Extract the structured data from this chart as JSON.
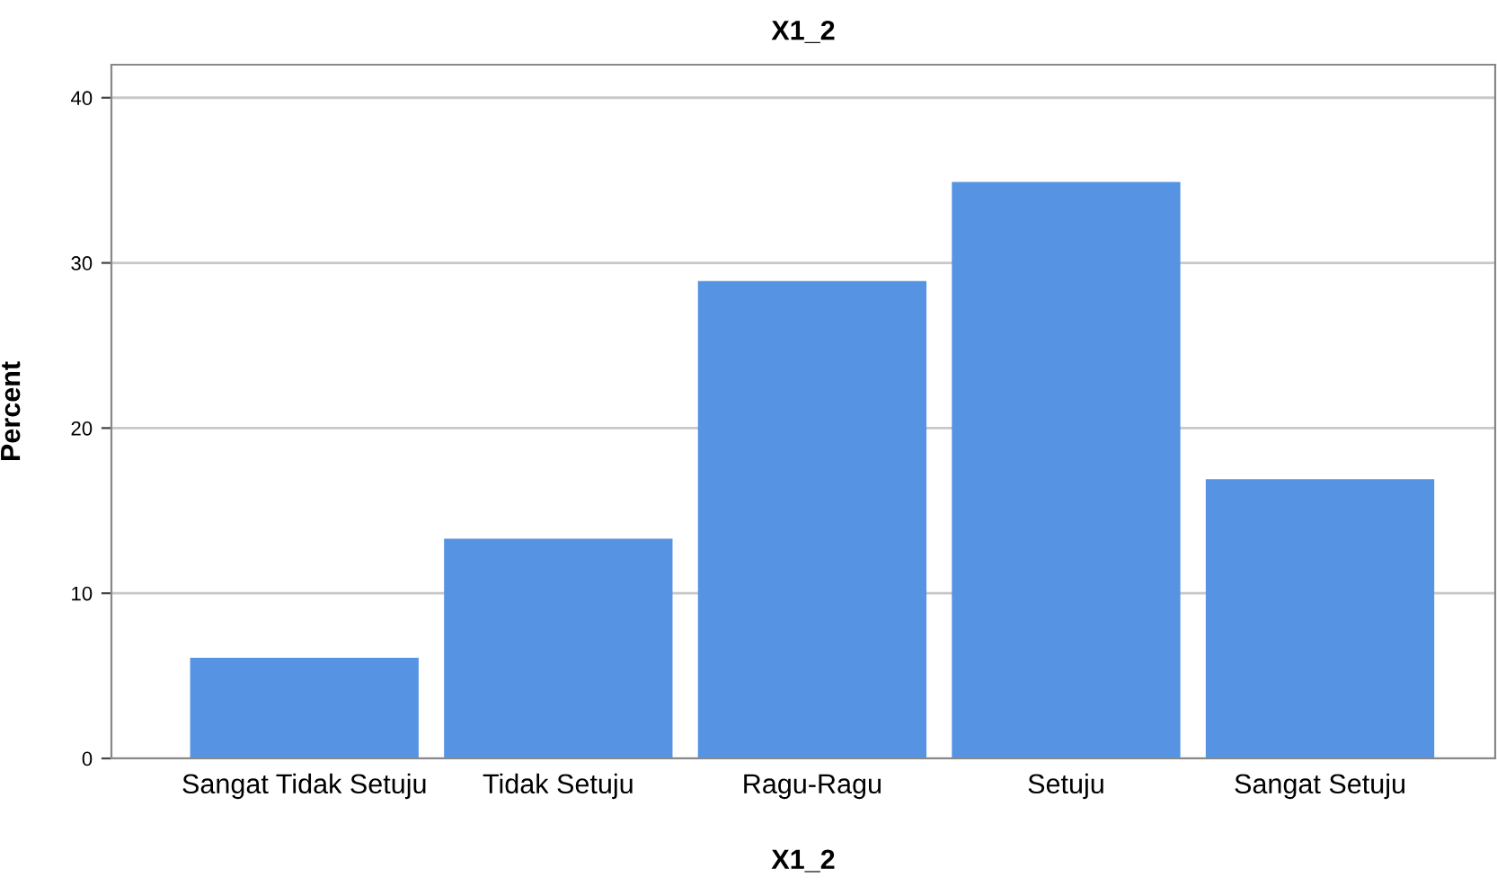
{
  "chart_data": {
    "type": "bar",
    "title": "X1_2",
    "xlabel": "X1_2",
    "ylabel": "Percent",
    "categories": [
      "Sangat Tidak Setuju",
      "Tidak Setuju",
      "Ragu-Ragu",
      "Setuju",
      "Sangat Setuju"
    ],
    "values": [
      6.1,
      13.3,
      28.9,
      34.9,
      16.9
    ],
    "color": "#5694e3",
    "ylim": [
      0,
      42
    ],
    "yticks": [
      0,
      10,
      20,
      30,
      40
    ],
    "grid": "y",
    "legend": false
  }
}
